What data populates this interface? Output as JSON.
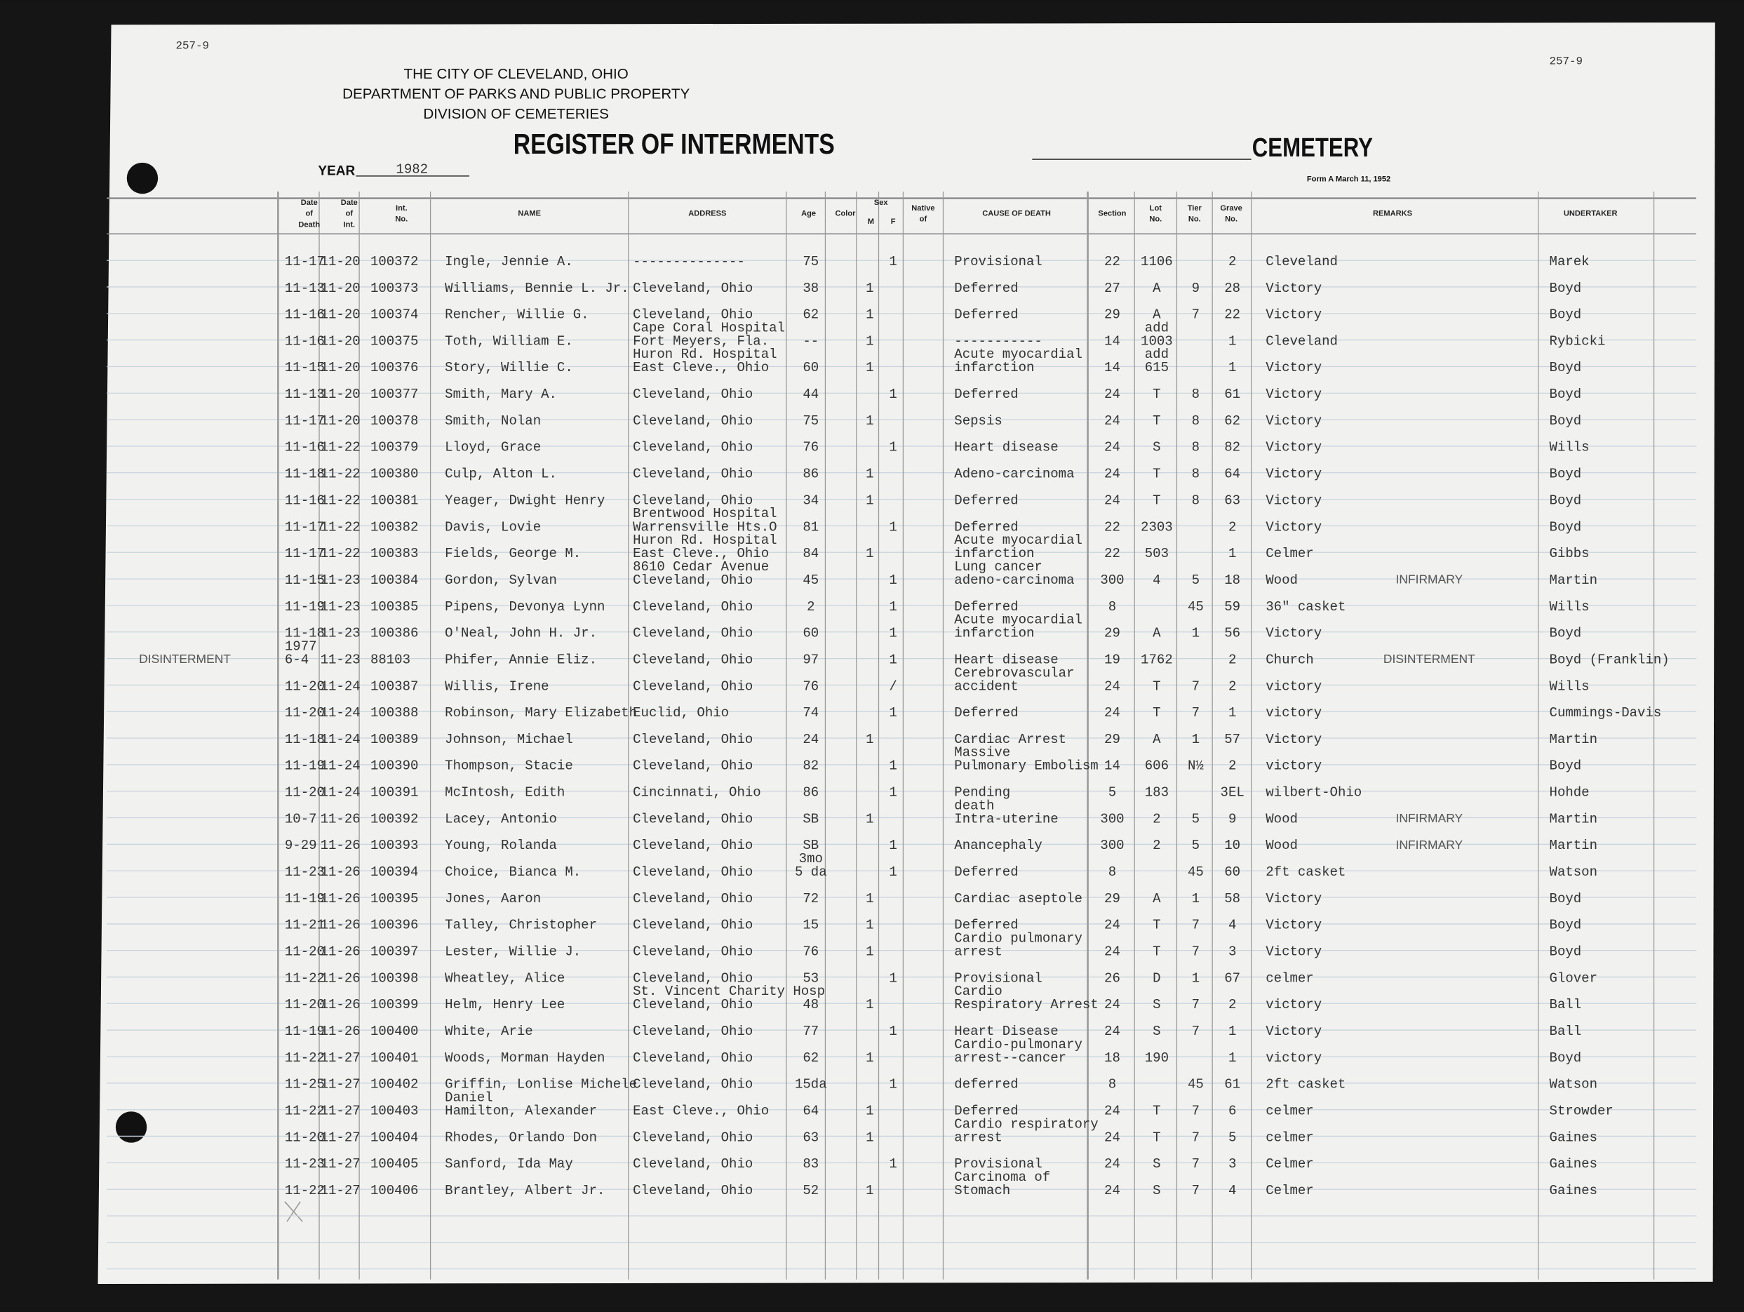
{
  "header": {
    "page_no_left": "257-9",
    "page_no_right": "257-9",
    "city": "THE CITY OF CLEVELAND, OHIO",
    "department": "DEPARTMENT OF PARKS AND PUBLIC PROPERTY",
    "division": "DIVISION OF CEMETERIES",
    "title": "REGISTER OF INTERMENTS",
    "cemetery_label": "CEMETERY",
    "form": "Form A March 11, 1952",
    "year_label": "YEAR",
    "year": "1982"
  },
  "columns": {
    "date_of_death": [
      "Date",
      "of",
      "Death"
    ],
    "date_of_int": [
      "Date",
      "of",
      "Int."
    ],
    "int_no": [
      "Int.",
      "No."
    ],
    "name": [
      "NAME"
    ],
    "address": [
      "ADDRESS"
    ],
    "age": [
      "Age"
    ],
    "color": [
      "Color"
    ],
    "sex": [
      "Sex"
    ],
    "m": [
      "M"
    ],
    "f": [
      "F"
    ],
    "native_of": [
      "Native",
      "of"
    ],
    "cause": [
      "CAUSE OF DEATH"
    ],
    "section": [
      "Section"
    ],
    "lot": [
      "Lot",
      "No."
    ],
    "tier": [
      "Tier",
      "No."
    ],
    "grave": [
      "Grave",
      "No."
    ],
    "remarks": [
      "REMARKS"
    ],
    "undertaker": [
      "UNDERTAKER"
    ]
  },
  "rows": [
    {
      "date_of_death": "11-17",
      "date_of_int": "11-20",
      "int_no": "100372",
      "name": "Ingle, Jennie A.",
      "address": "--------------",
      "age": "75",
      "f": "1",
      "cause": "Provisional",
      "section": "22",
      "lot": "1106",
      "grave": "2",
      "cemetery": "Cleveland",
      "undertaker": "Marek"
    },
    {
      "date_of_death": "11-13",
      "date_of_int": "11-20",
      "int_no": "100373",
      "name": "Williams, Bennie L. Jr.",
      "address": "Cleveland, Ohio",
      "age": "38",
      "m": "1",
      "cause": "Deferred",
      "section": "27",
      "lot": "A",
      "tier": "9",
      "grave": "28",
      "cemetery": "Victory",
      "undertaker": "Boyd"
    },
    {
      "date_of_death": "11-16",
      "date_of_int": "11-20",
      "int_no": "100374",
      "name": "Rencher, Willie G.",
      "address": "Cleveland, Ohio",
      "age": "62",
      "m": "1",
      "cause": "Deferred",
      "section": "29",
      "lot": "A",
      "tier": "7",
      "grave": "22",
      "cemetery": "Victory",
      "undertaker": "Boyd"
    },
    {
      "date_of_death": "11-16",
      "date_of_int": "11-20",
      "int_no": "100375",
      "name": "Toth, William E.",
      "address": [
        "Cape Coral Hospital",
        "Fort Meyers, Fla."
      ],
      "age": "--",
      "m": "1",
      "cause": "-----------",
      "section": "14",
      "lot": [
        "add",
        "1003"
      ],
      "grave": "1",
      "cemetery": "Cleveland",
      "undertaker": "Rybicki"
    },
    {
      "date_of_death": "11-15",
      "date_of_int": "11-20",
      "int_no": "100376",
      "name": "Story, Willie C.",
      "address": [
        "Huron Rd. Hospital",
        "East Cleve., Ohio"
      ],
      "age": "60",
      "m": "1",
      "cause": [
        "Acute myocardial",
        "infarction"
      ],
      "section": "14",
      "lot": [
        "add",
        "615"
      ],
      "grave": "1",
      "cemetery": "Victory",
      "undertaker": "Boyd"
    },
    {
      "date_of_death": "11-13",
      "date_of_int": "11-20",
      "int_no": "100377",
      "name": "Smith, Mary A.",
      "address": "Cleveland, Ohio",
      "age": "44",
      "f": "1",
      "cause": "Deferred",
      "section": "24",
      "lot": "T",
      "tier": "8",
      "grave": "61",
      "cemetery": "Victory",
      "undertaker": "Boyd"
    },
    {
      "date_of_death": "11-17",
      "date_of_int": "11-20",
      "int_no": "100378",
      "name": "Smith, Nolan",
      "address": "Cleveland, Ohio",
      "age": "75",
      "m": "1",
      "cause": "Sepsis",
      "section": "24",
      "lot": "T",
      "tier": "8",
      "grave": "62",
      "cemetery": "Victory",
      "undertaker": "Boyd"
    },
    {
      "date_of_death": "11-16",
      "date_of_int": "11-22",
      "int_no": "100379",
      "name": "Lloyd, Grace",
      "address": "Cleveland, Ohio",
      "age": "76",
      "f": "1",
      "cause": "Heart disease",
      "section": "24",
      "lot": "S",
      "tier": "8",
      "grave": "82",
      "cemetery": "Victory",
      "undertaker": "Wills"
    },
    {
      "date_of_death": "11-18",
      "date_of_int": "11-22",
      "int_no": "100380",
      "name": "Culp, Alton L.",
      "address": "Cleveland, Ohio",
      "age": "86",
      "m": "1",
      "cause": "Adeno-carcinoma",
      "section": "24",
      "lot": "T",
      "tier": "8",
      "grave": "64",
      "cemetery": "Victory",
      "undertaker": "Boyd"
    },
    {
      "date_of_death": "11-16",
      "date_of_int": "11-22",
      "int_no": "100381",
      "name": "Yeager, Dwight Henry",
      "address": "Cleveland, Ohio",
      "age": "34",
      "m": "1",
      "cause": "Deferred",
      "section": "24",
      "lot": "T",
      "tier": "8",
      "grave": "63",
      "cemetery": "Victory",
      "undertaker": "Boyd"
    },
    {
      "date_of_death": "11-17",
      "date_of_int": "11-22",
      "int_no": "100382",
      "name": "Davis, Lovie",
      "address": [
        "Brentwood Hospital",
        "Warrensville Hts.O"
      ],
      "age": "81",
      "f": "1",
      "cause": "Deferred",
      "section": "22",
      "lot": "2303",
      "grave": "2",
      "cemetery": "Victory",
      "undertaker": "Boyd"
    },
    {
      "date_of_death": "11-17",
      "date_of_int": "11-22",
      "int_no": "100383",
      "name": "Fields, George M.",
      "address": [
        "Huron Rd. Hospital",
        "East Cleve., Ohio"
      ],
      "age": "84",
      "m": "1",
      "cause": [
        "Acute myocardial",
        "infarction"
      ],
      "section": "22",
      "lot": "503",
      "grave": "1",
      "cemetery": "Celmer",
      "undertaker": "Gibbs"
    },
    {
      "date_of_death": "11-15",
      "date_of_int": "11-23",
      "int_no": "100384",
      "name": "Gordon, Sylvan",
      "address": [
        "8610 Cedar Avenue",
        "Cleveland, Ohio"
      ],
      "age": "45",
      "f": "1",
      "cause": [
        "Lung cancer",
        "adeno-carcinoma"
      ],
      "section": "300",
      "lot": "4",
      "tier": "5",
      "grave": "18",
      "cemetery": "Wood",
      "remark": "INFIRMARY",
      "undertaker": "Martin"
    },
    {
      "date_of_death": "11-19",
      "date_of_int": "11-23",
      "int_no": "100385",
      "name": "Pipens, Devonya Lynn",
      "address": "Cleveland, Ohio",
      "age": "2",
      "f": "1",
      "cause": "Deferred",
      "section": "8",
      "tier": "45",
      "grave": "59",
      "cemetery": "36\" casket",
      "undertaker": "Wills"
    },
    {
      "date_of_death": "11-18",
      "date_of_int": "11-23",
      "int_no": "100386",
      "name": "O'Neal, John H. Jr.",
      "address": "Cleveland, Ohio",
      "age": "60",
      "f": "1",
      "cause": [
        "Acute myocardial",
        "infarction"
      ],
      "section": "29",
      "lot": "A",
      "tier": "1",
      "grave": "56",
      "cemetery": "Victory",
      "undertaker": "Boyd"
    },
    {
      "margin_note": "DISINTERMENT",
      "date_of_death": [
        "1977",
        "6-4"
      ],
      "date_of_int": "11-23",
      "int_no": "88103",
      "name": "Phifer, Annie Eliz.",
      "address": "Cleveland, Ohio",
      "age": "97",
      "f": "1",
      "cause": "Heart disease",
      "section": "19",
      "lot": "1762",
      "grave": "2",
      "cemetery": "Church",
      "remark": "DISINTERMENT",
      "undertaker": "Boyd (Franklin)"
    },
    {
      "date_of_death": "11-20",
      "date_of_int": "11-24",
      "int_no": "100387",
      "name": "Willis, Irene",
      "address": "Cleveland, Ohio",
      "age": "76",
      "f": "/",
      "cause": [
        "Cerebrovascular",
        "accident"
      ],
      "section": "24",
      "lot": "T",
      "tier": "7",
      "grave": "2",
      "cemetery": "victory",
      "undertaker": "Wills"
    },
    {
      "date_of_death": "11-20",
      "date_of_int": "11-24",
      "int_no": "100388",
      "name": "Robinson, Mary Elizabeth",
      "address": "Euclid, Ohio",
      "age": "74",
      "f": "1",
      "cause": "Deferred",
      "section": "24",
      "lot": "T",
      "tier": "7",
      "grave": "1",
      "cemetery": "victory",
      "undertaker": "Cummings-Davis"
    },
    {
      "date_of_death": "11-18",
      "date_of_int": "11-24",
      "int_no": "100389",
      "name": "Johnson, Michael",
      "address": "Cleveland, Ohio",
      "age": "24",
      "m": "1",
      "cause": "Cardiac Arrest",
      "section": "29",
      "lot": "A",
      "tier": "1",
      "grave": "57",
      "cemetery": "Victory",
      "undertaker": "Martin"
    },
    {
      "date_of_death": "11-19",
      "date_of_int": "11-24",
      "int_no": "100390",
      "name": "Thompson, Stacie",
      "address": "Cleveland, Ohio",
      "age": "82",
      "f": "1",
      "cause": [
        "Massive",
        "Pulmonary Embolism"
      ],
      "section": "14",
      "lot": "606",
      "tier": "N½",
      "grave": "2",
      "cemetery": "victory",
      "undertaker": "Boyd"
    },
    {
      "date_of_death": "11-20",
      "date_of_int": "11-24",
      "int_no": "100391",
      "name": "McIntosh, Edith",
      "address": "Cincinnati, Ohio",
      "age": "86",
      "f": "1",
      "cause": "Pending",
      "section": "5",
      "lot": "183",
      "grave": "3EL",
      "cemetery": "wilbert-Ohio",
      "undertaker": "Hohde"
    },
    {
      "date_of_death": "10-7",
      "date_of_int": "11-26",
      "int_no": "100392",
      "name": "Lacey, Antonio",
      "address": "Cleveland, Ohio",
      "age": "SB",
      "m": "1",
      "cause": [
        "death",
        "Intra-uterine"
      ],
      "section": "300",
      "lot": "2",
      "tier": "5",
      "grave": "9",
      "cemetery": "Wood",
      "remark": "INFIRMARY",
      "undertaker": "Martin"
    },
    {
      "date_of_death": "9-29",
      "date_of_int": "11-26",
      "int_no": "100393",
      "name": "Young, Rolanda",
      "address": "Cleveland, Ohio",
      "age": "SB",
      "f": "1",
      "cause": "Anancephaly",
      "section": "300",
      "lot": "2",
      "tier": "5",
      "grave": "10",
      "cemetery": "Wood",
      "remark": "INFIRMARY",
      "undertaker": "Martin"
    },
    {
      "date_of_death": "11-23",
      "date_of_int": "11-26",
      "int_no": "100394",
      "name": "Choice, Bianca M.",
      "address": "Cleveland, Ohio",
      "age": [
        "3mo",
        "5 da"
      ],
      "f": "1",
      "cause": "Deferred",
      "section": "8",
      "tier": "45",
      "grave": "60",
      "cemetery": "2ft casket",
      "undertaker": "Watson"
    },
    {
      "date_of_death": "11-19",
      "date_of_int": "11-26",
      "int_no": "100395",
      "name": "Jones, Aaron",
      "address": "Cleveland, Ohio",
      "age": "72",
      "m": "1",
      "cause": "Cardiac aseptole",
      "section": "29",
      "lot": "A",
      "tier": "1",
      "grave": "58",
      "cemetery": "Victory",
      "undertaker": "Boyd"
    },
    {
      "date_of_death": "11-21",
      "date_of_int": "11-26",
      "int_no": "100396",
      "name": "Talley, Christopher",
      "address": "Cleveland, Ohio",
      "age": "15",
      "m": "1",
      "cause": "Deferred",
      "section": "24",
      "lot": "T",
      "tier": "7",
      "grave": "4",
      "cemetery": "Victory",
      "undertaker": "Boyd"
    },
    {
      "date_of_death": "11-20",
      "date_of_int": "11-26",
      "int_no": "100397",
      "name": "Lester, Willie J.",
      "address": "Cleveland, Ohio",
      "age": "76",
      "m": "1",
      "cause": [
        "Cardio pulmonary",
        "arrest"
      ],
      "section": "24",
      "lot": "T",
      "tier": "7",
      "grave": "3",
      "cemetery": "Victory",
      "undertaker": "Boyd"
    },
    {
      "date_of_death": "11-22",
      "date_of_int": "11-26",
      "int_no": "100398",
      "name": "Wheatley, Alice",
      "address": "Cleveland, Ohio",
      "age": "53",
      "f": "1",
      "cause": "Provisional",
      "section": "26",
      "lot": "D",
      "tier": "1",
      "grave": "67",
      "cemetery": "celmer",
      "undertaker": "Glover"
    },
    {
      "date_of_death": "11-20",
      "date_of_int": "11-26",
      "int_no": "100399",
      "name": "Helm, Henry Lee",
      "address": [
        "St. Vincent Charity Hosp",
        "Cleveland, Ohio"
      ],
      "age": "48",
      "m": "1",
      "cause": [
        "Cardio",
        "Respiratory Arrest"
      ],
      "section": "24",
      "lot": "S",
      "tier": "7",
      "grave": "2",
      "cemetery": "victory",
      "undertaker": "Ball"
    },
    {
      "date_of_death": "11-19",
      "date_of_int": "11-26",
      "int_no": "100400",
      "name": "White, Arie",
      "address": "Cleveland, Ohio",
      "age": "77",
      "f": "1",
      "cause": "Heart Disease",
      "section": "24",
      "lot": "S",
      "tier": "7",
      "grave": "1",
      "cemetery": "Victory",
      "undertaker": "Ball"
    },
    {
      "date_of_death": "11-22",
      "date_of_int": "11-27",
      "int_no": "100401",
      "name": "Woods, Morman Hayden",
      "address": "Cleveland, Ohio",
      "age": "62",
      "m": "1",
      "cause": [
        "Cardio-pulmonary",
        "arrest--cancer"
      ],
      "section": "18",
      "lot": "190",
      "grave": "1",
      "cemetery": "victory",
      "undertaker": "Boyd"
    },
    {
      "date_of_death": "11-25",
      "date_of_int": "11-27",
      "int_no": "100402",
      "name": "Griffin, Lonlise Michele",
      "address": "Cleveland, Ohio",
      "age": "15da",
      "f": "1",
      "cause": "deferred",
      "section": "8",
      "tier": "45",
      "grave": "61",
      "cemetery": "2ft casket",
      "undertaker": "Watson"
    },
    {
      "date_of_death": "11-22",
      "date_of_int": "11-27",
      "int_no": "100403",
      "name": [
        "Daniel",
        "Hamilton, Alexander"
      ],
      "address": "East Cleve., Ohio",
      "age": "64",
      "m": "1",
      "cause": "Deferred",
      "section": "24",
      "lot": "T",
      "tier": "7",
      "grave": "6",
      "cemetery": "celmer",
      "undertaker": "Strowder"
    },
    {
      "date_of_death": "11-20",
      "date_of_int": "11-27",
      "int_no": "100404",
      "name": "Rhodes, Orlando Don",
      "address": "Cleveland, Ohio",
      "age": "63",
      "m": "1",
      "cause": [
        "Cardio respiratory",
        "arrest"
      ],
      "section": "24",
      "lot": "T",
      "tier": "7",
      "grave": "5",
      "cemetery": "celmer",
      "undertaker": "Gaines"
    },
    {
      "date_of_death": "11-23",
      "date_of_int": "11-27",
      "int_no": "100405",
      "name": "Sanford, Ida May",
      "address": "Cleveland, Ohio",
      "age": "83",
      "f": "1",
      "cause": "Provisional",
      "section": "24",
      "lot": "S",
      "tier": "7",
      "grave": "3",
      "cemetery": "Celmer",
      "undertaker": "Gaines"
    },
    {
      "date_of_death": "11-22",
      "date_of_int": "11-27",
      "int_no": "100406",
      "name": "Brantley, Albert Jr.",
      "address": "Cleveland, Ohio",
      "age": "52",
      "m": "1",
      "cause": [
        "Carcinoma of",
        "Stomach"
      ],
      "section": "24",
      "lot": "S",
      "tier": "7",
      "grave": "4",
      "cemetery": "Celmer",
      "undertaker": "Gaines"
    }
  ]
}
